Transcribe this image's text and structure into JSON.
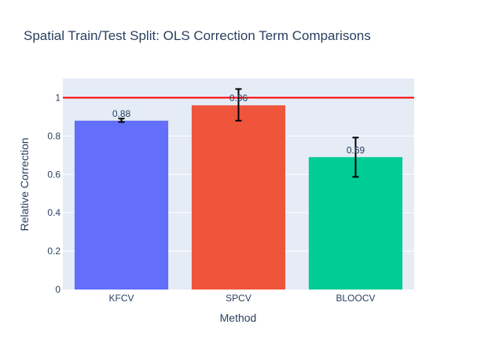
{
  "chart_data": {
    "type": "bar",
    "title": "Spatial Train/Test Split: OLS Correction Term Comparisons",
    "xlabel": "Method",
    "ylabel": "Relative Correction",
    "categories": [
      "KFCV",
      "SPCV",
      "BLOOCV"
    ],
    "values": [
      0.88,
      0.96,
      0.69
    ],
    "value_labels": [
      "0.88",
      "0.96",
      "0.69"
    ],
    "error_low": [
      0.873,
      0.88,
      0.587
    ],
    "error_high": [
      0.891,
      1.045,
      0.792
    ],
    "bar_colors": [
      "#636efa",
      "#ef553b",
      "#00cc96"
    ],
    "ylim": [
      0,
      1.1
    ],
    "yticks": [
      0,
      0.2,
      0.4,
      0.6,
      0.8,
      1
    ],
    "ytick_labels": [
      "0",
      "0.2",
      "0.4",
      "0.6",
      "0.8",
      "1"
    ],
    "reference_line": {
      "y": 1,
      "color": "#ff0000"
    },
    "grid": true,
    "plot_background": "#e5ecf6",
    "text_color": "#2a3f5f"
  }
}
